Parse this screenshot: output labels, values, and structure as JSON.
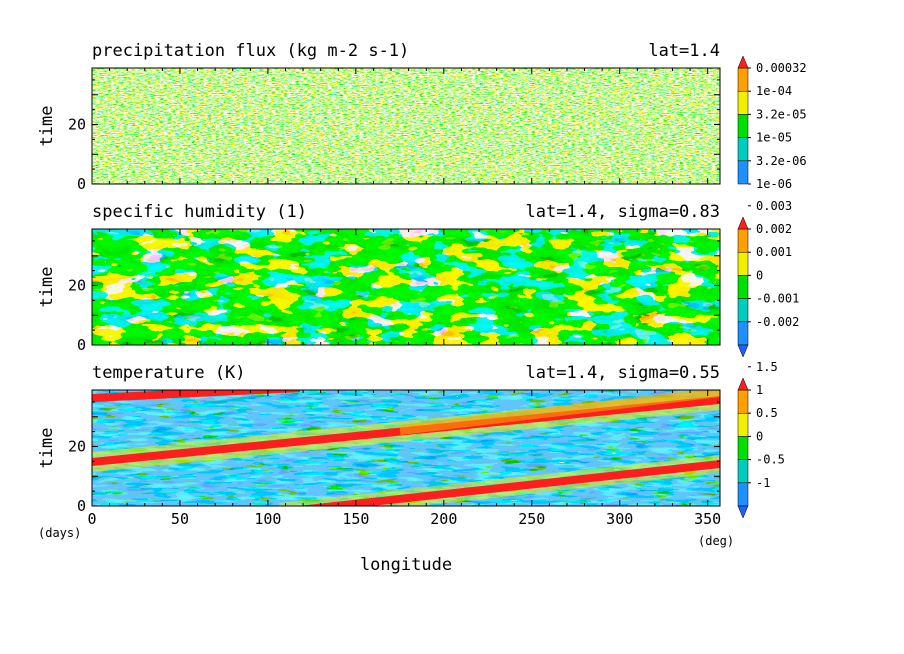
{
  "chart_data": [
    {
      "type": "heatmap",
      "title": "precipitation flux (kg m-2 s-1)",
      "annotation": "lat=1.4",
      "ylabel": "time",
      "ylim": [
        0,
        39
      ],
      "xlim": [
        0,
        357
      ],
      "yticks": [
        0,
        20
      ],
      "colorbar": {
        "labels": [
          "1e-06",
          "3.2e-06",
          "1e-05",
          "3.2e-05",
          "1e-04",
          "0.00032"
        ],
        "colors": [
          "#1e90ff",
          "#00ccc0",
          "#00e000",
          "#f0f000",
          "#ffa000",
          "#ff1e1e"
        ],
        "under": "none",
        "over": "#ff1e1e"
      }
    },
    {
      "type": "heatmap",
      "title": "specific humidity (1)",
      "annotation": "lat=1.4, sigma=0.83",
      "ylabel": "time",
      "ylim": [
        0,
        39
      ],
      "xlim": [
        0,
        357
      ],
      "yticks": [
        0,
        20
      ],
      "colorbar": {
        "labels": [
          "-0.002",
          "-0.001",
          "0",
          "0.001",
          "0.002",
          "0.003"
        ],
        "colors": [
          "#2060ff",
          "#1e90ff",
          "#00ccc0",
          "#00e000",
          "#f0f000",
          "#ffa000",
          "#ff1e1e"
        ],
        "under": "#2060ff",
        "over": "#ff1e1e"
      }
    },
    {
      "type": "heatmap",
      "title": "temperature (K)",
      "annotation": "lat=1.4, sigma=0.55",
      "ylabel": "time",
      "xlabel": "longitude",
      "ylim": [
        0,
        39
      ],
      "xlim": [
        0,
        357
      ],
      "xticks": [
        0,
        50,
        100,
        150,
        200,
        250,
        300,
        350
      ],
      "yticks": [
        0,
        20
      ],
      "x_unit": "(deg)",
      "y_unit": "(days)",
      "colorbar": {
        "labels": [
          "-1",
          "-0.5",
          "0",
          "0.5",
          "1",
          "1.5"
        ],
        "colors": [
          "#2060ff",
          "#1e90ff",
          "#00ccc0",
          "#00e000",
          "#f0f000",
          "#ffa000",
          "#ff1e1e"
        ],
        "under": "#2060ff",
        "over": "#ff1e1e"
      },
      "features": "red warm bands propagating eastward with time"
    }
  ]
}
